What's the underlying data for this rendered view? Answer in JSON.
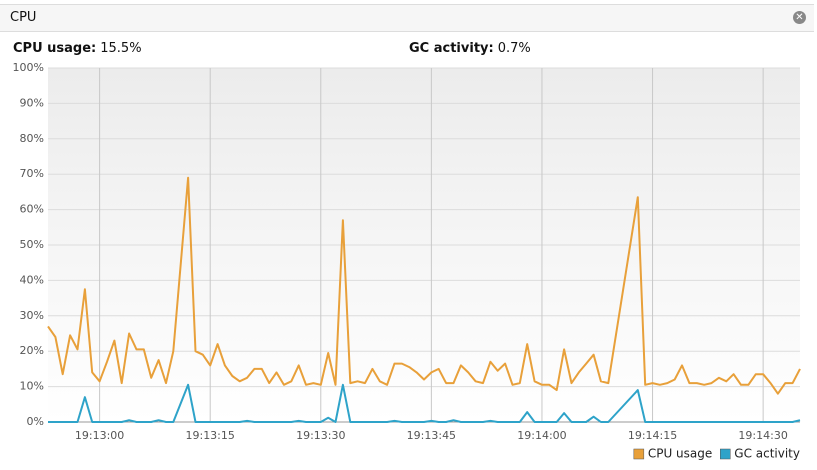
{
  "header": {
    "title": "CPU"
  },
  "stats": [
    {
      "label": "CPU usage:",
      "value": "15.5%"
    },
    {
      "label": "GC activity:",
      "value": "0.7%"
    }
  ],
  "chart_data": {
    "type": "line",
    "x": [
      "19:12:53",
      "19:12:54",
      "19:12:55",
      "19:12:56",
      "19:12:57",
      "19:12:58",
      "19:12:59",
      "19:13:00",
      "19:13:01",
      "19:13:02",
      "19:13:03",
      "19:13:04",
      "19:13:05",
      "19:13:06",
      "19:13:07",
      "19:13:08",
      "19:13:09",
      "19:13:10",
      "19:13:12",
      "19:13:13",
      "19:13:14",
      "19:13:15",
      "19:13:16",
      "19:13:17",
      "19:13:18",
      "19:13:19",
      "19:13:20",
      "19:13:21",
      "19:13:22",
      "19:13:23",
      "19:13:24",
      "19:13:25",
      "19:13:26",
      "19:13:27",
      "19:13:28",
      "19:13:29",
      "19:13:30",
      "19:13:31",
      "19:13:32",
      "19:13:33",
      "19:13:34",
      "19:13:35",
      "19:13:36",
      "19:13:37",
      "19:13:38",
      "19:13:39",
      "19:13:40",
      "19:13:41",
      "19:13:42",
      "19:13:43",
      "19:13:44",
      "19:13:45",
      "19:13:46",
      "19:13:47",
      "19:13:48",
      "19:13:49",
      "19:13:50",
      "19:13:51",
      "19:13:52",
      "19:13:53",
      "19:13:54",
      "19:13:55",
      "19:13:56",
      "19:13:57",
      "19:13:58",
      "19:13:59",
      "19:14:00",
      "19:14:01",
      "19:14:02",
      "19:14:03",
      "19:14:04",
      "19:14:05",
      "19:14:06",
      "19:14:07",
      "19:14:08",
      "19:14:09",
      "19:14:13",
      "19:14:14",
      "19:14:15",
      "19:14:16",
      "19:14:17",
      "19:14:18",
      "19:14:19",
      "19:14:20",
      "19:14:21",
      "19:14:22",
      "19:14:23",
      "19:14:24",
      "19:14:25",
      "19:14:26",
      "19:14:27",
      "19:14:28",
      "19:14:29",
      "19:14:30",
      "19:14:31",
      "19:14:32",
      "19:14:33",
      "19:14:34",
      "19:14:35"
    ],
    "series": [
      {
        "name": "CPU usage",
        "color": "#e8a03a",
        "values": [
          27,
          24,
          13.5,
          24.5,
          20.5,
          37.5,
          14,
          11.5,
          17,
          23,
          11,
          25,
          20.5,
          20.5,
          12.5,
          17.5,
          11,
          20,
          69,
          20,
          19,
          16,
          22,
          16,
          13,
          11.5,
          12.5,
          15,
          15,
          11,
          14,
          10.5,
          11.5,
          16,
          10.5,
          11,
          10.5,
          19.5,
          10.5,
          57,
          11,
          11.5,
          11,
          15,
          11.5,
          10.5,
          16.5,
          16.5,
          15.5,
          14,
          12,
          14,
          15,
          11,
          11,
          16,
          14,
          11.5,
          11,
          17,
          14.5,
          16.5,
          10.5,
          11,
          22,
          11.5,
          10.5,
          10.5,
          9,
          20.5,
          11,
          14,
          16.5,
          19,
          11.5,
          11,
          63.5,
          10.5,
          11,
          10.5,
          11,
          12,
          16,
          11,
          11,
          10.5,
          11,
          12.5,
          11.5,
          13.5,
          10.5,
          10.5,
          13.5,
          13.5,
          11,
          8,
          11,
          11,
          15
        ]
      },
      {
        "name": "GC activity",
        "color": "#2ea3c9",
        "values": [
          0,
          0,
          0,
          0,
          0,
          7,
          0,
          0,
          0,
          0,
          0,
          0.5,
          0,
          0,
          0,
          0.5,
          0,
          0,
          10.5,
          0,
          0,
          0,
          0,
          0,
          0,
          0,
          0.3,
          0,
          0,
          0,
          0,
          0,
          0,
          0.3,
          0,
          0,
          0,
          1.2,
          0,
          10.5,
          0,
          0,
          0,
          0,
          0,
          0,
          0.3,
          0,
          0,
          0,
          0,
          0.3,
          0,
          0,
          0.5,
          0,
          0,
          0,
          0,
          0.3,
          0,
          0,
          0,
          0,
          2.8,
          0,
          0,
          0,
          0,
          2.5,
          0,
          0,
          0,
          1.5,
          0,
          0,
          9,
          0,
          0,
          0,
          0,
          0,
          0,
          0,
          0,
          0,
          0,
          0,
          0,
          0,
          0,
          0,
          0,
          0,
          0,
          0,
          0,
          0,
          0.5
        ]
      }
    ],
    "xlim": [
      "19:12:53",
      "19:14:35"
    ],
    "xticks": [
      "19:13:00",
      "19:13:15",
      "19:13:30",
      "19:13:45",
      "19:14:00",
      "19:14:15",
      "19:14:30"
    ],
    "ylim": [
      0,
      100
    ],
    "yticks": [
      {
        "value": 0,
        "label": "0%"
      },
      {
        "value": 10,
        "label": "10%"
      },
      {
        "value": 20,
        "label": "20%"
      },
      {
        "value": 30,
        "label": "30%"
      },
      {
        "value": 40,
        "label": "40%"
      },
      {
        "value": 50,
        "label": "50%"
      },
      {
        "value": 60,
        "label": "60%"
      },
      {
        "value": 70,
        "label": "70%"
      },
      {
        "value": 80,
        "label": "80%"
      },
      {
        "value": 90,
        "label": "90%"
      },
      {
        "value": 100,
        "label": "100%"
      }
    ],
    "grid": true,
    "legend": "bottom-right"
  }
}
